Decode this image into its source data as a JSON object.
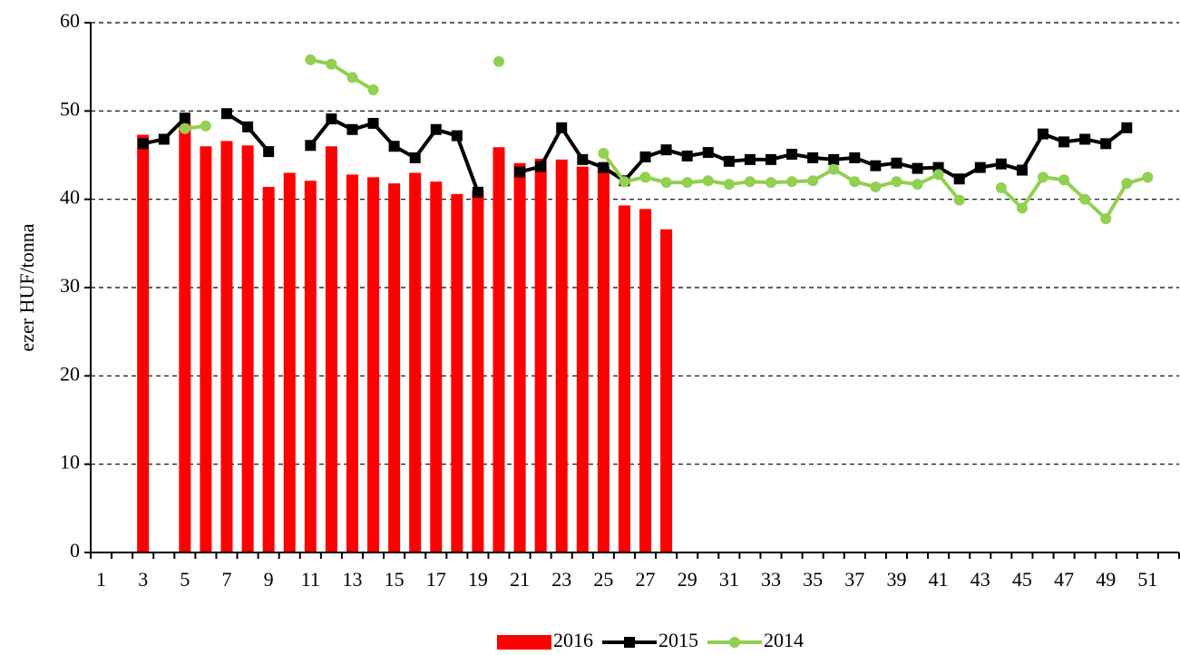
{
  "chart_data": {
    "type": "bar_line",
    "y_label": "ezer HUF/tonna",
    "categories": [
      1,
      null,
      3,
      null,
      5,
      null,
      7,
      null,
      9,
      null,
      11,
      null,
      13,
      null,
      15,
      null,
      17,
      null,
      19,
      null,
      21,
      null,
      23,
      null,
      25,
      null,
      27,
      null,
      29,
      null,
      31,
      null,
      33,
      null,
      35,
      null,
      37,
      null,
      39,
      null,
      41,
      null,
      43,
      null,
      45,
      null,
      47,
      null,
      49,
      null,
      51,
      null
    ],
    "ylim": [
      0,
      60
    ],
    "yticks": [
      0,
      10,
      20,
      30,
      40,
      50,
      60
    ],
    "grid": true,
    "legend": "bottom",
    "series": [
      {
        "name": "2016",
        "type": "bar",
        "color": "#ff0000",
        "values": [
          null,
          null,
          47.3,
          null,
          48.7,
          46,
          46.6,
          46.1,
          41.4,
          43,
          42.1,
          46,
          42.8,
          42.5,
          41.8,
          43,
          42,
          40.6,
          41,
          45.9,
          44.1,
          44.6,
          44.5,
          43.7,
          43.7,
          39.3,
          38.9,
          36.6,
          null,
          null,
          null,
          null,
          null,
          null,
          null,
          null,
          null,
          null,
          null,
          null,
          null,
          null,
          null,
          null,
          null,
          null,
          null,
          null,
          null,
          null,
          null,
          null
        ]
      },
      {
        "name": "2015",
        "type": "line",
        "color": "#000000",
        "marker": "square",
        "values": [
          null,
          null,
          46.3,
          46.8,
          49.2,
          null,
          49.7,
          48.2,
          45.4,
          null,
          46.1,
          49.1,
          47.9,
          48.6,
          46,
          44.7,
          47.9,
          47.2,
          40.8,
          null,
          43.1,
          43.7,
          48.1,
          44.5,
          43.6,
          42.1,
          44.8,
          45.6,
          44.9,
          45.3,
          44.3,
          44.5,
          44.5,
          45.1,
          44.7,
          44.5,
          44.7,
          43.8,
          44.1,
          43.5,
          43.6,
          42.3,
          43.6,
          44,
          43.3,
          47.4,
          46.5,
          46.8,
          46.3,
          48.1,
          null,
          null
        ]
      },
      {
        "name": "2014",
        "type": "line",
        "color": "#92d050",
        "marker": "circle",
        "values": [
          null,
          null,
          null,
          null,
          48,
          48.3,
          null,
          null,
          null,
          null,
          55.8,
          55.3,
          53.8,
          52.4,
          null,
          null,
          null,
          null,
          null,
          55.6,
          null,
          null,
          null,
          null,
          45.2,
          42,
          42.5,
          41.9,
          41.9,
          42.1,
          41.7,
          42,
          41.9,
          42,
          42.1,
          43.4,
          42,
          41.4,
          42,
          41.7,
          42.8,
          39.9,
          null,
          41.3,
          39,
          42.5,
          42.2,
          40,
          37.8,
          41.8,
          42.5,
          null
        ]
      }
    ]
  }
}
